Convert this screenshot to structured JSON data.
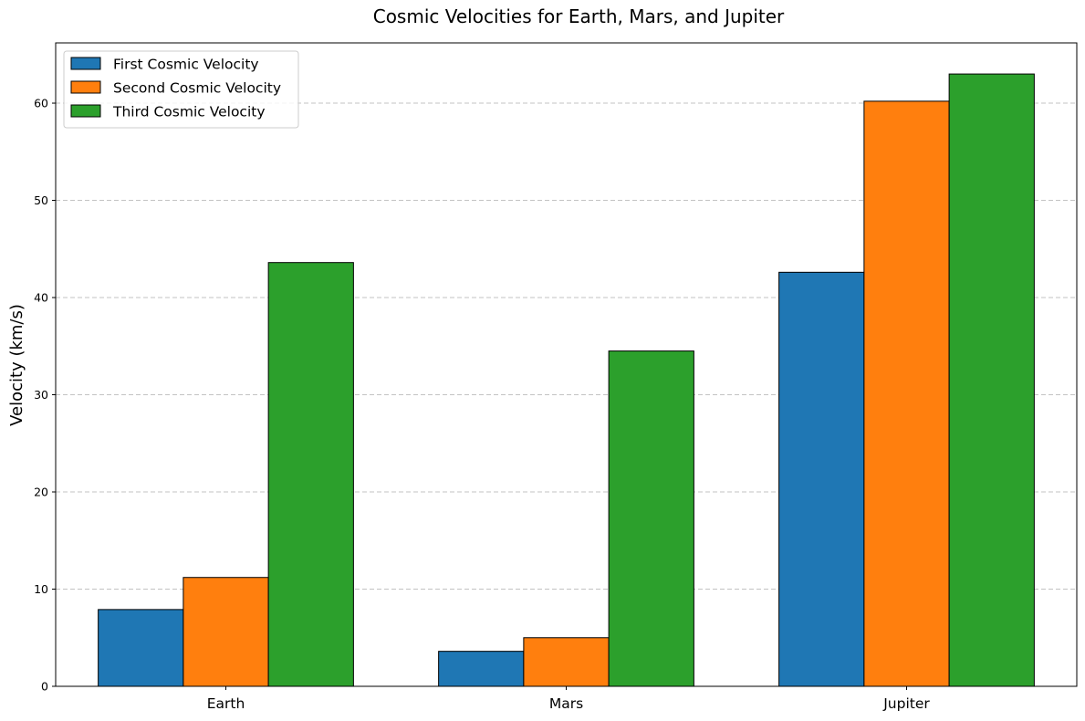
{
  "chart_data": {
    "type": "bar",
    "title": "Cosmic Velocities for Earth, Mars, and Jupiter",
    "xlabel": "",
    "ylabel": "Velocity (km/s)",
    "categories": [
      "Earth",
      "Mars",
      "Jupiter"
    ],
    "series": [
      {
        "name": "First Cosmic Velocity",
        "color": "#1f77b4",
        "values": [
          7.9,
          3.6,
          42.6
        ]
      },
      {
        "name": "Second Cosmic Velocity",
        "color": "#ff7f0e",
        "values": [
          11.2,
          5.0,
          60.2
        ]
      },
      {
        "name": "Third Cosmic Velocity",
        "color": "#2ca02c",
        "values": [
          43.6,
          34.5,
          63.0
        ]
      }
    ],
    "ylim": [
      0,
      66.2
    ],
    "yticks": [
      0,
      10,
      20,
      30,
      40,
      50,
      60
    ],
    "grid": "y-dashed",
    "legend_position": "top-left"
  }
}
